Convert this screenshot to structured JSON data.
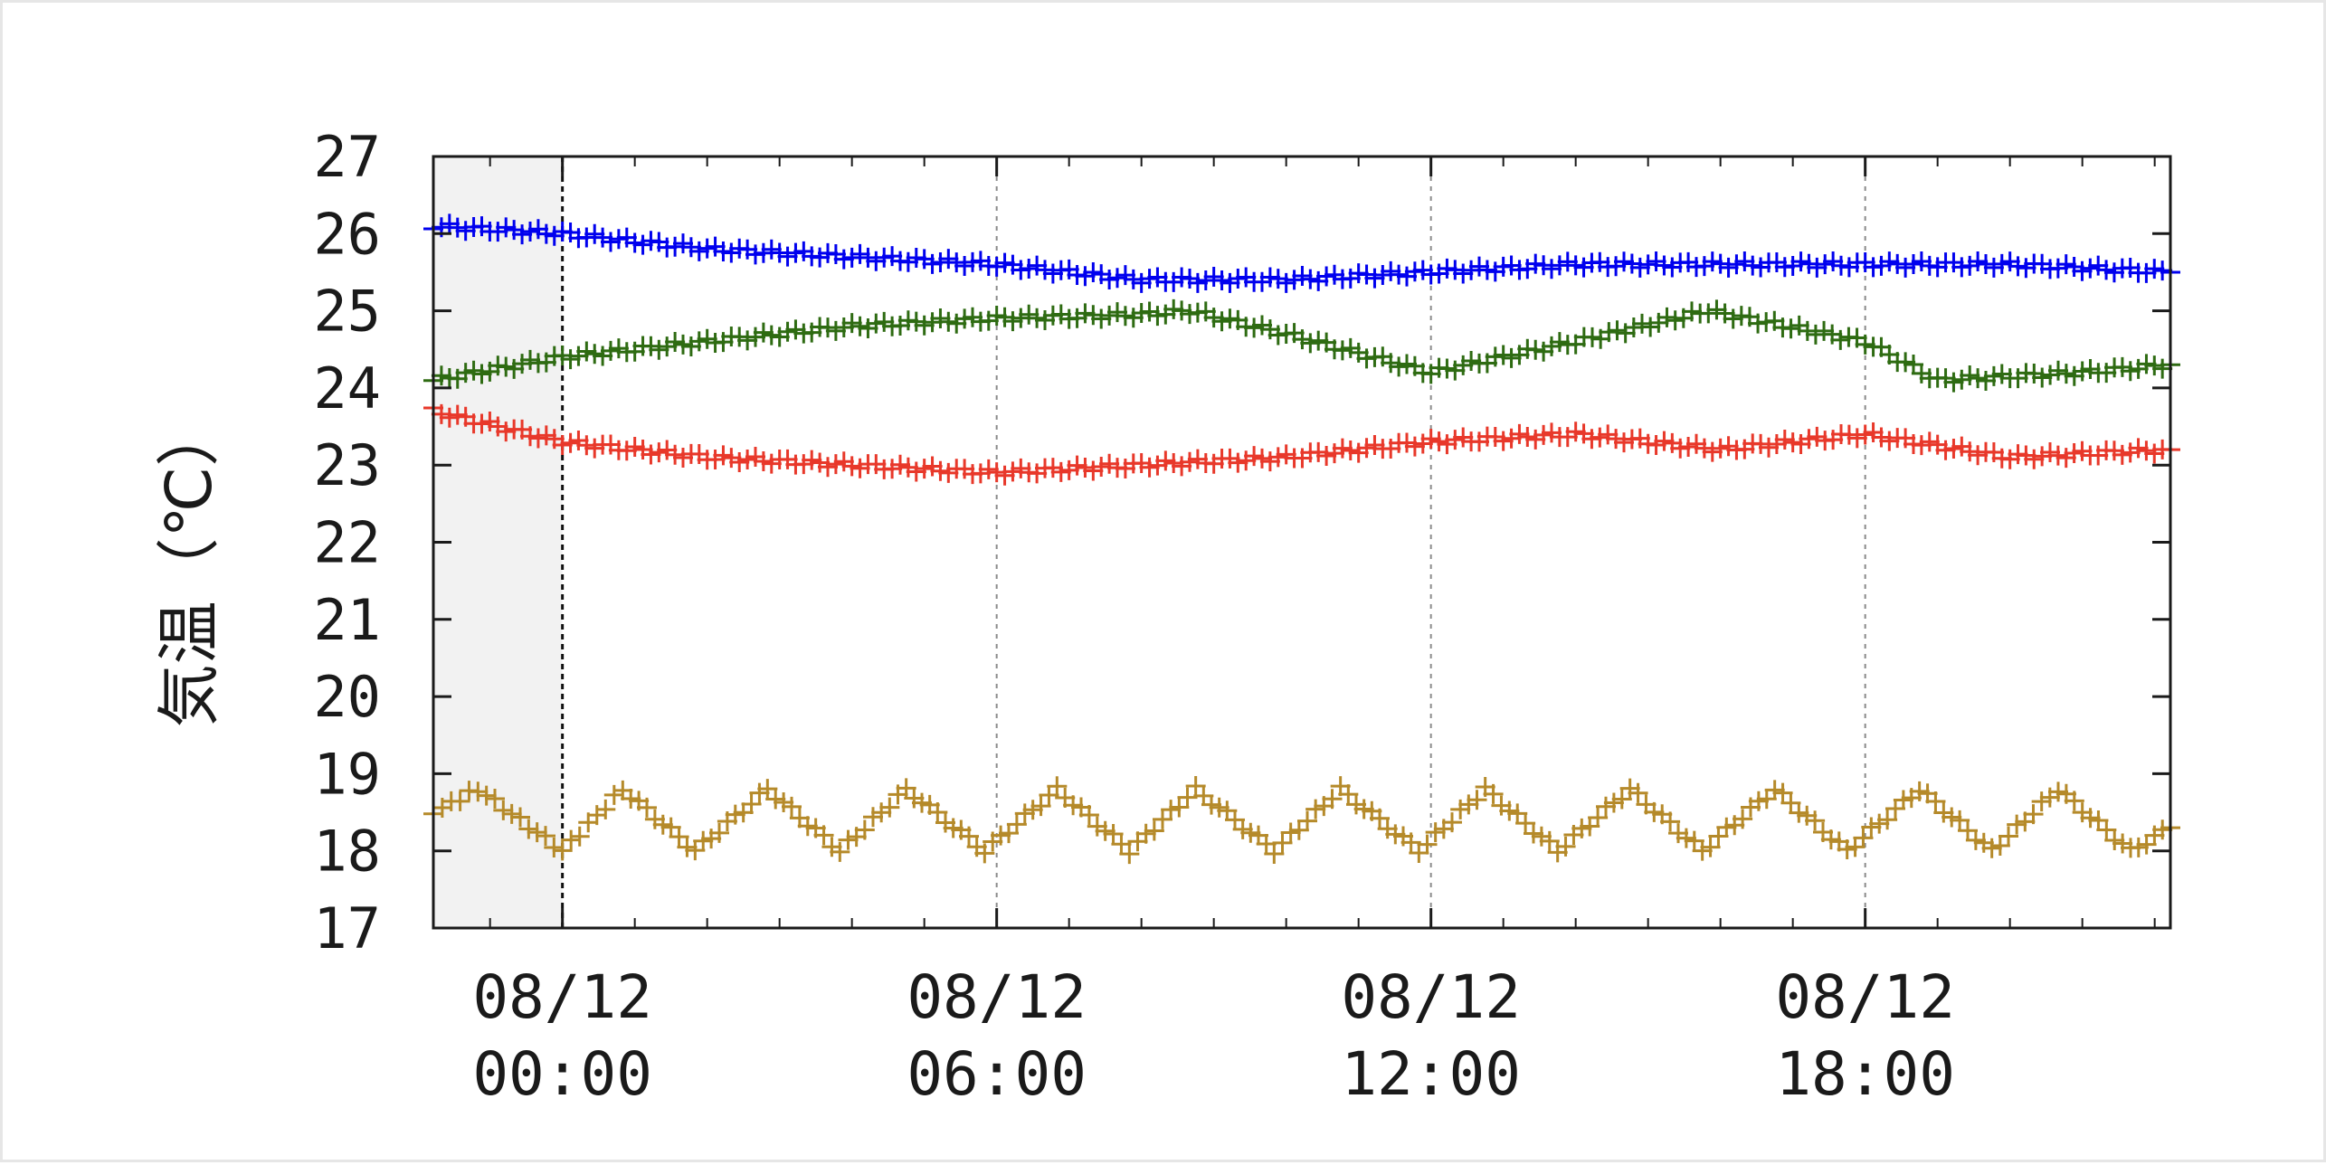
{
  "chart_data": {
    "type": "scatter",
    "title": "",
    "xlabel": "",
    "ylabel": "気温（℃）",
    "ylim": [
      17,
      27
    ],
    "yticks": [
      "17",
      "18",
      "19",
      "20",
      "21",
      "22",
      "23",
      "24",
      "25",
      "26",
      "27"
    ],
    "xlim": [
      "08/11 22:13",
      "08/12 22:13"
    ],
    "xticks": [
      {
        "x": "08/12 00:00",
        "line1": "08/12",
        "line2": "00:00"
      },
      {
        "x": "08/12 06:00",
        "line1": "08/12",
        "line2": "06:00"
      },
      {
        "x": "08/12 12:00",
        "line1": "08/12",
        "line2": "12:00"
      },
      {
        "x": "08/12 18:00",
        "line1": "08/12",
        "line2": "18:00"
      }
    ],
    "grid": "vertical-dashed",
    "shaded_region": {
      "start": "08/11 22:13",
      "end": "08/12 00:00",
      "color": "#f2f2f2"
    },
    "marker": "plus",
    "series": [
      {
        "color": "#0000ee",
        "points": [
          [
            "08/11 22:13",
            26.1
          ],
          [
            "08/12 00:00",
            26.0
          ],
          [
            "08/12 02:00",
            25.8
          ],
          [
            "08/12 04:00",
            25.7
          ],
          [
            "08/12 06:00",
            25.6
          ],
          [
            "08/12 08:00",
            25.4
          ],
          [
            "08/12 10:00",
            25.4
          ],
          [
            "08/12 12:00",
            25.5
          ],
          [
            "08/12 14:00",
            25.6
          ],
          [
            "08/12 16:00",
            25.6
          ],
          [
            "08/12 18:00",
            25.6
          ],
          [
            "08/12 20:00",
            25.6
          ],
          [
            "08/12 22:13",
            25.5
          ]
        ]
      },
      {
        "color": "#2e6b12",
        "points": [
          [
            "08/11 22:13",
            24.1
          ],
          [
            "08/12 00:00",
            24.4
          ],
          [
            "08/12 02:00",
            24.6
          ],
          [
            "08/12 04:00",
            24.8
          ],
          [
            "08/12 06:00",
            24.9
          ],
          [
            "08/12 08:00",
            24.95
          ],
          [
            "08/12 08:40",
            25.0
          ],
          [
            "08/12 10:00",
            24.7
          ],
          [
            "08/12 12:00",
            24.2
          ],
          [
            "08/12 14:00",
            24.6
          ],
          [
            "08/12 15:50",
            25.0
          ],
          [
            "08/12 18:00",
            24.6
          ],
          [
            "08/12 19:00",
            24.1
          ],
          [
            "08/12 21:00",
            24.2
          ],
          [
            "08/12 22:13",
            24.3
          ]
        ]
      },
      {
        "color": "#e8382a",
        "points": [
          [
            "08/11 22:13",
            23.7
          ],
          [
            "08/12 00:00",
            23.3
          ],
          [
            "08/12 02:00",
            23.1
          ],
          [
            "08/12 04:00",
            23.0
          ],
          [
            "08/12 06:00",
            22.9
          ],
          [
            "08/12 08:00",
            23.0
          ],
          [
            "08/12 10:00",
            23.1
          ],
          [
            "08/12 12:00",
            23.3
          ],
          [
            "08/12 14:00",
            23.4
          ],
          [
            "08/12 16:00",
            23.2
          ],
          [
            "08/12 18:00",
            23.4
          ],
          [
            "08/12 20:00",
            23.1
          ],
          [
            "08/12 22:13",
            23.2
          ]
        ]
      },
      {
        "color": "#b58a2a",
        "points": [
          [
            "08/11 22:13",
            18.5
          ],
          [
            "08/11 22:50",
            18.8
          ],
          [
            "08/12 00:00",
            18.0
          ],
          [
            "08/12 00:50",
            18.8
          ],
          [
            "08/12 01:50",
            18.0
          ],
          [
            "08/12 02:50",
            18.8
          ],
          [
            "08/12 03:50",
            18.0
          ],
          [
            "08/12 04:45",
            18.8
          ],
          [
            "08/12 05:50",
            18.0
          ],
          [
            "08/12 06:50",
            18.8
          ],
          [
            "08/12 07:50",
            18.0
          ],
          [
            "08/12 08:45",
            18.8
          ],
          [
            "08/12 09:50",
            18.0
          ],
          [
            "08/12 10:45",
            18.8
          ],
          [
            "08/12 11:50",
            18.0
          ],
          [
            "08/12 12:45",
            18.8
          ],
          [
            "08/12 13:45",
            18.0
          ],
          [
            "08/12 14:45",
            18.8
          ],
          [
            "08/12 15:45",
            18.0
          ],
          [
            "08/12 16:45",
            18.8
          ],
          [
            "08/12 17:45",
            18.0
          ],
          [
            "08/12 18:45",
            18.8
          ],
          [
            "08/12 19:45",
            18.0
          ],
          [
            "08/12 20:40",
            18.8
          ],
          [
            "08/12 21:40",
            18.0
          ],
          [
            "08/12 22:13",
            18.3
          ]
        ]
      }
    ]
  }
}
